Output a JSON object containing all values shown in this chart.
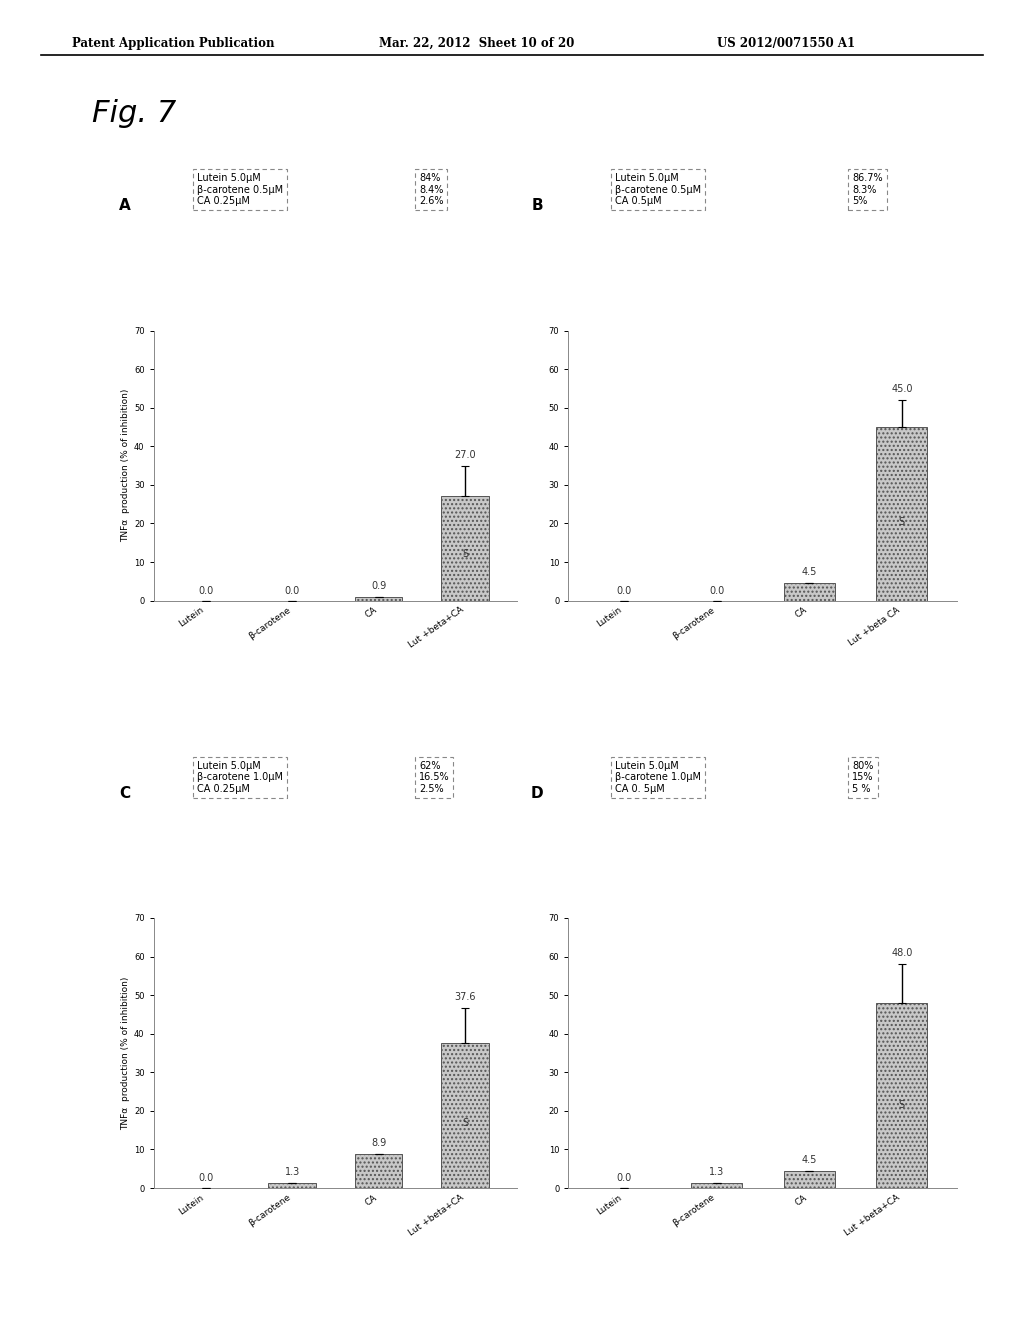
{
  "fig_label": "Fig. 7",
  "header_left": "Patent Application Publication",
  "header_mid": "Mar. 22, 2012  Sheet 10 of 20",
  "header_right": "US 2012/0071550 A1",
  "background_color": "#ececec",
  "subplots": [
    {
      "label": "A",
      "categories": [
        "Lutein",
        "β-carotene",
        "CA",
        "Lut +beta+CA"
      ],
      "values": [
        0.0,
        0.0,
        0.9,
        27.0
      ],
      "errors": [
        0.0,
        0.0,
        0.0,
        8.0
      ],
      "ylim": [
        0,
        70
      ],
      "yticks": [
        0,
        10,
        20,
        30,
        40,
        50,
        60,
        70
      ],
      "annotation_left": "Lutein 5.0μM\nβ-carotene 0.5μM\nCA 0.25μM",
      "annotation_right": "84%\n8.4%\n2.6%"
    },
    {
      "label": "B",
      "categories": [
        "Lutein",
        "β-carotene",
        "CA",
        "Lut +beta CA"
      ],
      "values": [
        0.0,
        0.0,
        4.5,
        45.0
      ],
      "errors": [
        0.0,
        0.0,
        0.0,
        7.0
      ],
      "ylim": [
        0,
        70
      ],
      "yticks": [
        0,
        10,
        20,
        30,
        40,
        50,
        60,
        70
      ],
      "annotation_left": "Lutein 5.0μM\nβ-carotene 0.5μM\nCA 0.5μM",
      "annotation_right": "86.7%\n8.3%\n5%"
    },
    {
      "label": "C",
      "categories": [
        "Lutein",
        "β-carotene",
        "CA",
        "Lut +beta+CA"
      ],
      "values": [
        0.0,
        1.3,
        8.9,
        37.6
      ],
      "errors": [
        0.0,
        0.0,
        0.0,
        9.0
      ],
      "ylim": [
        0,
        70
      ],
      "yticks": [
        0,
        10,
        20,
        30,
        40,
        50,
        60,
        70
      ],
      "annotation_left": "Lutein 5.0μM\nβ-carotene 1.0μM\nCA 0.25μM",
      "annotation_right": "62%\n16.5%\n2.5%"
    },
    {
      "label": "D",
      "categories": [
        "Lutein",
        "β-carotene",
        "CA",
        "Lut +beta+CA"
      ],
      "values": [
        0.0,
        1.3,
        4.5,
        48.0
      ],
      "errors": [
        0.0,
        0.0,
        0.0,
        10.0
      ],
      "ylim": [
        0,
        70
      ],
      "yticks": [
        0,
        10,
        20,
        30,
        40,
        50,
        60,
        70
      ],
      "annotation_left": "Lutein 5.0μM\nβ-carotene 1.0μM\nCA 0. 5μM",
      "annotation_right": "80%\n15%\n5 %"
    }
  ],
  "ylabel": "TNFα  production (% of inhibition)",
  "bar_color": "#c8c8c8",
  "bar_hatch": "....",
  "bar_edgecolor": "#555555"
}
